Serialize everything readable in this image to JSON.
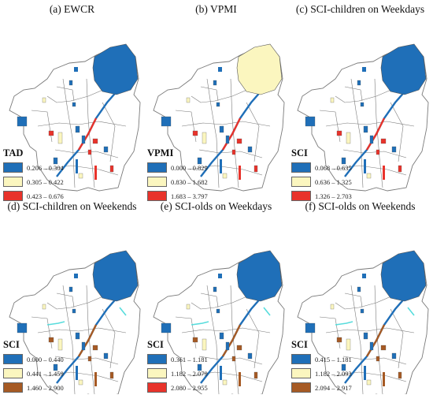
{
  "colors": {
    "blue": "#1f6fb8",
    "cream": "#fbf6bf",
    "red": "#e8332b",
    "brown": "#a65a24",
    "outline": "#7a7a7a",
    "cyan": "#57dcdc",
    "magenta": "#f09ad8"
  },
  "panels": [
    {
      "title": "(a) EWCR",
      "legend_title": "TAD",
      "legend_items": [
        {
          "label": "0.206 – 0.304",
          "color": "#1f6fb8"
        },
        {
          "label": "0.305 – 0.422",
          "color": "#fbf6bf"
        },
        {
          "label": "0.423 – 0.676",
          "color": "#e8332b"
        }
      ],
      "accent_color": "#e8332b",
      "big_block_color": "#1f6fb8"
    },
    {
      "title": "(b) VPMI",
      "legend_title": "VPMI",
      "legend_items": [
        {
          "label": "0.000 – 0.829",
          "color": "#1f6fb8"
        },
        {
          "label": "0.830 – 1.682",
          "color": "#fbf6bf"
        },
        {
          "label": "1.683 – 3.797",
          "color": "#e8332b"
        }
      ],
      "accent_color": "#e8332b",
      "big_block_color": "#fbf6bf"
    },
    {
      "title": "(c) SCI-children on Weekdays",
      "legend_title": "SCI",
      "legend_items": [
        {
          "label": "0.068 – 0.635",
          "color": "#1f6fb8"
        },
        {
          "label": "0.636 – 1.325",
          "color": "#fbf6bf"
        },
        {
          "label": "1.326 – 2.703",
          "color": "#e8332b"
        }
      ],
      "accent_color": "#e8332b",
      "big_block_color": "#1f6fb8"
    },
    {
      "title": "(d) SCI-children on Weekends",
      "legend_title": "SCI",
      "legend_items": [
        {
          "label": "0.000 – 0.440",
          "color": "#1f6fb8"
        },
        {
          "label": "0.441 – 1.459",
          "color": "#fbf6bf"
        },
        {
          "label": "1.460 – 2.900",
          "color": "#a65a24"
        }
      ],
      "accent_color": "#a65a24",
      "big_block_color": "#1f6fb8"
    },
    {
      "title": "(e) SCI-olds on Weekdays",
      "legend_title": "SCI",
      "legend_items": [
        {
          "label": "0.361 – 1.181",
          "color": "#1f6fb8"
        },
        {
          "label": "1.182 – 2.079",
          "color": "#fbf6bf"
        },
        {
          "label": "2.080 – 2.955",
          "color": "#e8332b"
        }
      ],
      "accent_color": "#a65a24",
      "big_block_color": "#1f6fb8"
    },
    {
      "title": "(f) SCI-olds on Weekends",
      "legend_title": "SCI",
      "legend_items": [
        {
          "label": "0.415 – 1.181",
          "color": "#1f6fb8"
        },
        {
          "label": "1.182 – 2.093",
          "color": "#fbf6bf"
        },
        {
          "label": "2.094 – 2.917",
          "color": "#a65a24"
        }
      ],
      "accent_color": "#a65a24",
      "big_block_color": "#1f6fb8"
    }
  ]
}
